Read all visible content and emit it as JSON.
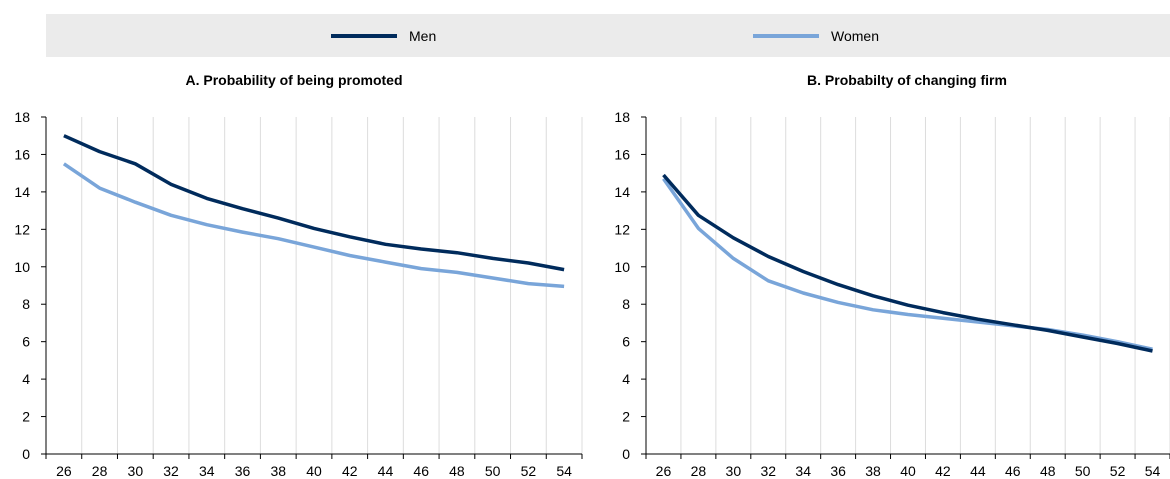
{
  "legend": {
    "items": [
      {
        "name": "Men",
        "color": "#002b5c"
      },
      {
        "name": "Women",
        "color": "#79a5d9"
      }
    ]
  },
  "chart_data": [
    {
      "type": "line",
      "title": "A. Probability of being promoted",
      "xlabel": "",
      "ylabel": "",
      "x": [
        26,
        28,
        30,
        32,
        34,
        36,
        38,
        40,
        42,
        44,
        46,
        48,
        50,
        52,
        54
      ],
      "xlim": [
        25,
        55
      ],
      "ylim": [
        0,
        18
      ],
      "yticks": [
        0,
        2,
        4,
        6,
        8,
        10,
        12,
        14,
        16,
        18
      ],
      "grid": "vertical",
      "series": [
        {
          "name": "Men",
          "color": "#002b5c",
          "values": [
            17.0,
            16.15,
            15.5,
            14.4,
            13.65,
            13.1,
            12.6,
            12.05,
            11.6,
            11.2,
            10.95,
            10.75,
            10.45,
            10.2,
            9.85
          ]
        },
        {
          "name": "Women",
          "color": "#79a5d9",
          "values": [
            15.5,
            14.2,
            13.45,
            12.75,
            12.25,
            11.85,
            11.5,
            11.05,
            10.6,
            10.25,
            9.9,
            9.7,
            9.4,
            9.1,
            8.95
          ]
        }
      ]
    },
    {
      "type": "line",
      "title": "B. Probabilty of changing firm",
      "xlabel": "",
      "ylabel": "",
      "x": [
        26,
        28,
        30,
        32,
        34,
        36,
        38,
        40,
        42,
        44,
        46,
        48,
        50,
        52,
        54
      ],
      "xlim": [
        25,
        55
      ],
      "ylim": [
        0,
        18
      ],
      "yticks": [
        0,
        2,
        4,
        6,
        8,
        10,
        12,
        14,
        16,
        18
      ],
      "grid": "vertical",
      "series": [
        {
          "name": "Men",
          "color": "#002b5c",
          "values": [
            14.9,
            12.75,
            11.55,
            10.55,
            9.75,
            9.05,
            8.45,
            7.95,
            7.55,
            7.2,
            6.9,
            6.6,
            6.25,
            5.9,
            5.5
          ]
        },
        {
          "name": "Women",
          "color": "#79a5d9",
          "values": [
            14.7,
            12.05,
            10.45,
            9.25,
            8.6,
            8.1,
            7.7,
            7.45,
            7.25,
            7.05,
            6.85,
            6.65,
            6.35,
            6.0,
            5.6
          ]
        }
      ]
    }
  ]
}
